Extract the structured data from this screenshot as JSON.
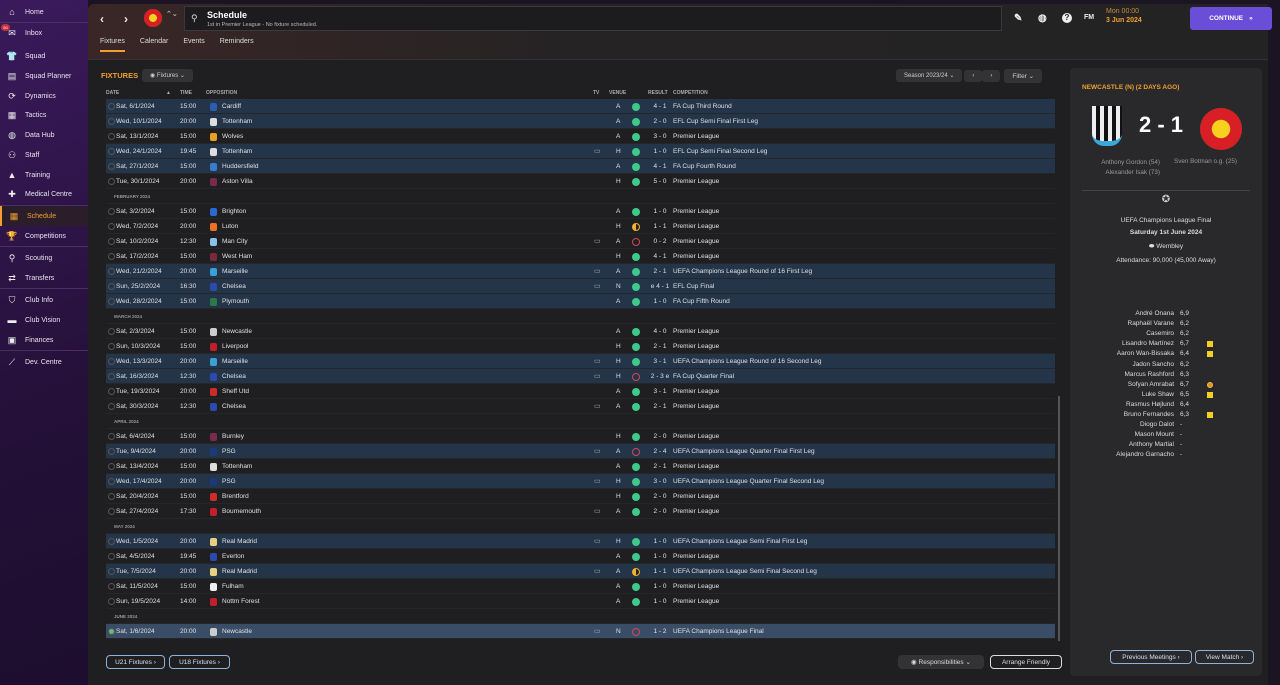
{
  "sidebar": {
    "items": [
      {
        "label": "Home",
        "icon": "home-icon"
      },
      {
        "label": "Inbox",
        "icon": "inbox-icon",
        "badge": "50"
      },
      {
        "label": "Squad",
        "icon": "shirt-icon"
      },
      {
        "label": "Squad Planner",
        "icon": "clipboard-icon"
      },
      {
        "label": "Dynamics",
        "icon": "dynamics-icon"
      },
      {
        "label": "Tactics",
        "icon": "tactics-icon"
      },
      {
        "label": "Data Hub",
        "icon": "data-hub-icon"
      },
      {
        "label": "Staff",
        "icon": "staff-icon"
      },
      {
        "label": "Training",
        "icon": "training-icon"
      },
      {
        "label": "Medical Centre",
        "icon": "medical-icon"
      },
      {
        "label": "Schedule",
        "icon": "calendar-icon",
        "active": true
      },
      {
        "label": "Competitions",
        "icon": "trophy-icon"
      },
      {
        "label": "Scouting",
        "icon": "search-icon"
      },
      {
        "label": "Transfers",
        "icon": "transfer-icon"
      },
      {
        "label": "Club Info",
        "icon": "shield-icon"
      },
      {
        "label": "Club Vision",
        "icon": "briefcase-icon"
      },
      {
        "label": "Finances",
        "icon": "money-icon"
      },
      {
        "label": "Dev. Centre",
        "icon": "chart-icon"
      }
    ]
  },
  "header": {
    "title": "Schedule",
    "subtitle": "1st in Premier League - No fixture scheduled.",
    "fm": "FM",
    "day_time": "Mon 00:00",
    "date": "3 Jun 2024",
    "continue": "CONTINUE"
  },
  "tabs": [
    "Fixtures",
    "Calendar",
    "Events",
    "Reminders"
  ],
  "fixtures_panel": {
    "title": "FIXTURES",
    "view": "Fixtures",
    "season": "Season 2023/24",
    "filter": "Filter",
    "columns": {
      "date": "DATE",
      "time": "TIME",
      "opposition": "OPPOSITION",
      "tv": "TV",
      "venue": "VENUE",
      "result": "RESULT",
      "competition": "COMPETITION"
    },
    "rows": [
      {
        "date": "Sat, 6/1/2024",
        "time": "15:00",
        "opp": "Cardiff",
        "tv": false,
        "venue": "A",
        "outcome": "w",
        "result": "4 - 1",
        "comp": "FA Cup Third Round",
        "cup": true
      },
      {
        "date": "Wed, 10/1/2024",
        "time": "20:00",
        "opp": "Tottenham",
        "tv": false,
        "venue": "A",
        "outcome": "w",
        "result": "2 - 0",
        "comp": "EFL Cup Semi Final First Leg",
        "cup": true
      },
      {
        "date": "Sat, 13/1/2024",
        "time": "15:00",
        "opp": "Wolves",
        "tv": false,
        "venue": "A",
        "outcome": "w",
        "result": "3 - 0",
        "comp": "Premier League"
      },
      {
        "date": "Wed, 24/1/2024",
        "time": "19:45",
        "opp": "Tottenham",
        "tv": true,
        "venue": "H",
        "outcome": "w",
        "result": "1 - 0",
        "comp": "EFL Cup Semi Final Second Leg",
        "cup": true
      },
      {
        "date": "Sat, 27/1/2024",
        "time": "15:00",
        "opp": "Huddersfield",
        "tv": false,
        "venue": "A",
        "outcome": "w",
        "result": "4 - 1",
        "comp": "FA Cup Fourth Round",
        "cup": true
      },
      {
        "date": "Tue, 30/1/2024",
        "time": "20:00",
        "opp": "Aston Villa",
        "tv": false,
        "venue": "H",
        "outcome": "w",
        "result": "5 - 0",
        "comp": "Premier League"
      },
      {
        "month": "FEBRUARY 2024"
      },
      {
        "date": "Sat, 3/2/2024",
        "time": "15:00",
        "opp": "Brighton",
        "tv": false,
        "venue": "A",
        "outcome": "w",
        "result": "1 - 0",
        "comp": "Premier League"
      },
      {
        "date": "Wed, 7/2/2024",
        "time": "20:00",
        "opp": "Luton",
        "tv": false,
        "venue": "H",
        "outcome": "d",
        "result": "1 - 1",
        "comp": "Premier League"
      },
      {
        "date": "Sat, 10/2/2024",
        "time": "12:30",
        "opp": "Man City",
        "tv": true,
        "venue": "A",
        "outcome": "l",
        "result": "0 - 2",
        "comp": "Premier League"
      },
      {
        "date": "Sat, 17/2/2024",
        "time": "15:00",
        "opp": "West Ham",
        "tv": false,
        "venue": "H",
        "outcome": "w",
        "result": "4 - 1",
        "comp": "Premier League"
      },
      {
        "date": "Wed, 21/2/2024",
        "time": "20:00",
        "opp": "Marseille",
        "tv": true,
        "venue": "A",
        "outcome": "w",
        "result": "2 - 1",
        "comp": "UEFA Champions League Round of 16  First Leg",
        "cup": true
      },
      {
        "date": "Sun, 25/2/2024",
        "time": "16:30",
        "opp": "Chelsea",
        "tv": true,
        "venue": "N",
        "outcome": "w",
        "result": "e 4 - 1",
        "comp": "EFL Cup Final",
        "cup": true
      },
      {
        "date": "Wed, 28/2/2024",
        "time": "15:00",
        "opp": "Plymouth",
        "tv": false,
        "venue": "A",
        "outcome": "w",
        "result": "1 - 0",
        "comp": "FA Cup Fifth Round",
        "cup": true
      },
      {
        "month": "MARCH 2024"
      },
      {
        "date": "Sat, 2/3/2024",
        "time": "15:00",
        "opp": "Newcastle",
        "tv": false,
        "venue": "A",
        "outcome": "w",
        "result": "4 - 0",
        "comp": "Premier League"
      },
      {
        "date": "Sun, 10/3/2024",
        "time": "15:00",
        "opp": "Liverpool",
        "tv": false,
        "venue": "H",
        "outcome": "w",
        "result": "2 - 1",
        "comp": "Premier League"
      },
      {
        "date": "Wed, 13/3/2024",
        "time": "20:00",
        "opp": "Marseille",
        "tv": true,
        "venue": "H",
        "outcome": "w",
        "result": "3 - 1",
        "comp": "UEFA Champions League Round of 16  Second Leg",
        "cup": true
      },
      {
        "date": "Sat, 16/3/2024",
        "time": "12:30",
        "opp": "Chelsea",
        "tv": true,
        "venue": "H",
        "outcome": "l",
        "result": "2 - 3 e",
        "comp": "FA Cup Quarter Final",
        "cup": true
      },
      {
        "date": "Tue, 19/3/2024",
        "time": "20:00",
        "opp": "Sheff Utd",
        "tv": false,
        "venue": "A",
        "outcome": "w",
        "result": "3 - 1",
        "comp": "Premier League"
      },
      {
        "date": "Sat, 30/3/2024",
        "time": "12:30",
        "opp": "Chelsea",
        "tv": true,
        "venue": "A",
        "outcome": "w",
        "result": "2 - 1",
        "comp": "Premier League"
      },
      {
        "month": "APRIL 2024"
      },
      {
        "date": "Sat, 6/4/2024",
        "time": "15:00",
        "opp": "Burnley",
        "tv": false,
        "venue": "H",
        "outcome": "w",
        "result": "2 - 0",
        "comp": "Premier League"
      },
      {
        "date": "Tue, 9/4/2024",
        "time": "20:00",
        "opp": "PSG",
        "tv": true,
        "venue": "A",
        "outcome": "l",
        "result": "2 - 4",
        "comp": "UEFA Champions League Quarter Final First Leg",
        "cup": true
      },
      {
        "date": "Sat, 13/4/2024",
        "time": "15:00",
        "opp": "Tottenham",
        "tv": false,
        "venue": "A",
        "outcome": "w",
        "result": "2 - 1",
        "comp": "Premier League"
      },
      {
        "date": "Wed, 17/4/2024",
        "time": "20:00",
        "opp": "PSG",
        "tv": true,
        "venue": "H",
        "outcome": "w",
        "result": "3 - 0",
        "comp": "UEFA Champions League Quarter Final Second Leg",
        "cup": true
      },
      {
        "date": "Sat, 20/4/2024",
        "time": "15:00",
        "opp": "Brentford",
        "tv": false,
        "venue": "H",
        "outcome": "w",
        "result": "2 - 0",
        "comp": "Premier League"
      },
      {
        "date": "Sat, 27/4/2024",
        "time": "17:30",
        "opp": "Bournemouth",
        "tv": true,
        "venue": "A",
        "outcome": "w",
        "result": "2 - 0",
        "comp": "Premier League"
      },
      {
        "month": "MAY 2024"
      },
      {
        "date": "Wed, 1/5/2024",
        "time": "20:00",
        "opp": "Real Madrid",
        "tv": true,
        "venue": "H",
        "outcome": "w",
        "result": "1 - 0",
        "comp": "UEFA Champions League Semi Final First Leg",
        "cup": true
      },
      {
        "date": "Sat, 4/5/2024",
        "time": "19:45",
        "opp": "Everton",
        "tv": false,
        "venue": "A",
        "outcome": "w",
        "result": "1 - 0",
        "comp": "Premier League"
      },
      {
        "date": "Tue, 7/5/2024",
        "time": "20:00",
        "opp": "Real Madrid",
        "tv": true,
        "venue": "A",
        "outcome": "d",
        "result": "1 - 1",
        "comp": "UEFA Champions League Semi Final Second Leg",
        "cup": true
      },
      {
        "date": "Sat, 11/5/2024",
        "time": "15:00",
        "opp": "Fulham",
        "tv": false,
        "venue": "A",
        "outcome": "w",
        "result": "1 - 0",
        "comp": "Premier League"
      },
      {
        "date": "Sun, 19/5/2024",
        "time": "14:00",
        "opp": "Nottm Forest",
        "tv": false,
        "venue": "A",
        "outcome": "w",
        "result": "1 - 0",
        "comp": "Premier League"
      },
      {
        "month": "JUNE 2024"
      },
      {
        "date": "Sat, 1/6/2024",
        "time": "20:00",
        "opp": "Newcastle",
        "tv": true,
        "venue": "N",
        "outcome": "l",
        "result": "1 - 2",
        "comp": "UEFA Champions League Final",
        "selected": true
      }
    ],
    "u21": "U21 Fixtures",
    "u18": "U18 Fixtures",
    "responsibilities": "Responsibilities",
    "arrange": "Arrange Friendly"
  },
  "match": {
    "heading": "NEWCASTLE (N) (2 DAYS AGO)",
    "score": "2 - 1",
    "home_scorers": [
      "Anthony Gordon (54)",
      "Alexander Isak (73)"
    ],
    "away_scorers": [
      "Sven Botman o.g. (25)"
    ],
    "competition": "UEFA Champions League Final",
    "date": "Saturday 1st June 2024",
    "venue": "Wembley",
    "attendance": "Attendance: 90,000 (45,000 Away)",
    "players": [
      {
        "name": "André Onana",
        "rating": "6,9"
      },
      {
        "name": "Raphaël Varane",
        "rating": "6,2"
      },
      {
        "name": "Casemiro",
        "rating": "6,2"
      },
      {
        "name": "Lisandro Martínez",
        "rating": "6,7",
        "card": "yellow"
      },
      {
        "name": "Aaron Wan-Bissaka",
        "rating": "6,4",
        "card": "yellow"
      },
      {
        "name": "Jadon Sancho",
        "rating": "6,2"
      },
      {
        "name": "Marcus Rashford",
        "rating": "6,3"
      },
      {
        "name": "Sofyan Amrabat",
        "rating": "6,7",
        "card": "sub"
      },
      {
        "name": "Luke Shaw",
        "rating": "6,5",
        "card": "yellow"
      },
      {
        "name": "Rasmus Højlund",
        "rating": "6,4"
      },
      {
        "name": "Bruno Fernandes",
        "rating": "6,3",
        "card": "yellow"
      },
      {
        "name": "Diogo Dalot",
        "rating": "-"
      },
      {
        "name": "Mason Mount",
        "rating": "-"
      },
      {
        "name": "Anthony Martial",
        "rating": "-"
      },
      {
        "name": "Alejandro Garnacho",
        "rating": "-"
      }
    ],
    "previous": "Previous Meetings",
    "view": "View Match"
  },
  "colors": {
    "accent": "#f0a030",
    "continue": "#6a4ed8",
    "win": "#3ec98a",
    "loss": "#d04858",
    "draw": "#f0b030",
    "cup_row": "#243549"
  }
}
